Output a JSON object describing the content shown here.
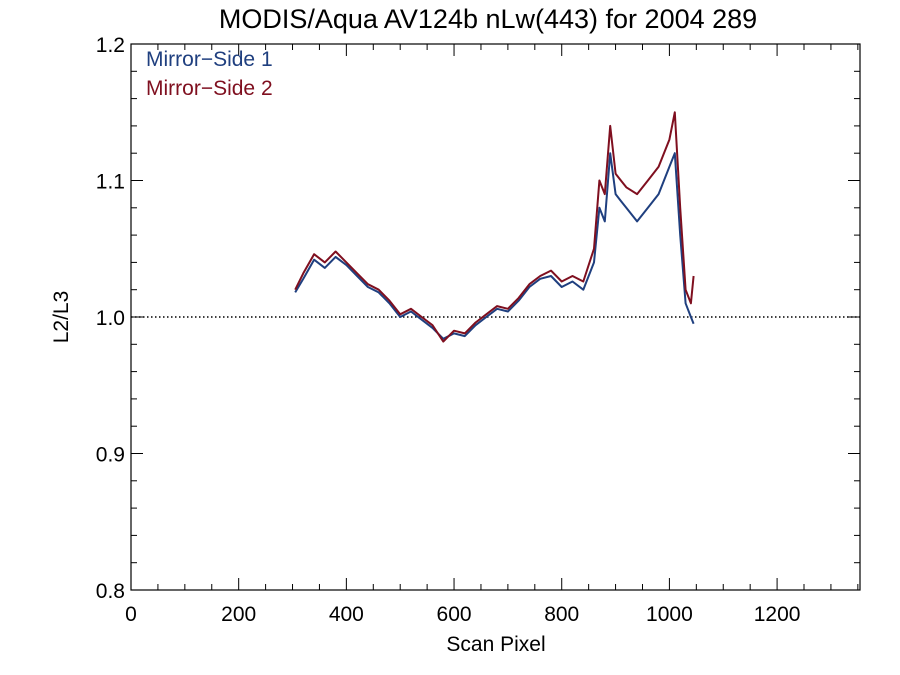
{
  "chart_data": {
    "type": "line",
    "title": "MODIS/Aqua AV124b nLw(443) for 2004 289",
    "xlabel": "Scan Pixel",
    "ylabel": "L2/L3",
    "xlim": [
      0,
      1354
    ],
    "ylim": [
      0.8,
      1.2
    ],
    "xticks": [
      0,
      200,
      400,
      600,
      800,
      1000,
      1200
    ],
    "xtick_labels": [
      "0",
      "200",
      "400",
      "600",
      "800",
      "1000",
      "1200"
    ],
    "yticks": [
      0.8,
      0.9,
      1.0,
      1.1,
      1.2
    ],
    "ytick_labels": [
      "0.8",
      "0.9",
      "1.0",
      "1.1",
      "1.2"
    ],
    "reference_line": {
      "y": 1.0,
      "style": "dotted"
    },
    "legend": {
      "position": "top-left",
      "entries": [
        "Mirror−Side 1",
        "Mirror−Side 2"
      ]
    },
    "grid": false,
    "x": [
      305,
      320,
      340,
      360,
      380,
      400,
      420,
      440,
      460,
      480,
      500,
      520,
      540,
      560,
      580,
      600,
      620,
      640,
      660,
      680,
      700,
      720,
      740,
      760,
      780,
      800,
      820,
      840,
      860,
      870,
      880,
      890,
      900,
      910,
      920,
      940,
      960,
      980,
      1000,
      1010,
      1020,
      1030,
      1040,
      1045
    ],
    "series": [
      {
        "name": "Mirror−Side 1",
        "color": "#1f3f7f",
        "values": [
          1.018,
          1.028,
          1.042,
          1.036,
          1.044,
          1.038,
          1.03,
          1.022,
          1.018,
          1.01,
          1.0,
          1.004,
          0.998,
          0.992,
          0.984,
          0.988,
          0.986,
          0.994,
          1.0,
          1.006,
          1.004,
          1.012,
          1.022,
          1.028,
          1.03,
          1.022,
          1.026,
          1.02,
          1.04,
          1.08,
          1.07,
          1.12,
          1.09,
          1.085,
          1.08,
          1.07,
          1.08,
          1.09,
          1.11,
          1.12,
          1.06,
          1.01,
          1.0,
          0.995
        ]
      },
      {
        "name": "Mirror−Side 2",
        "color": "#7f0f1f",
        "values": [
          1.02,
          1.032,
          1.046,
          1.04,
          1.048,
          1.04,
          1.032,
          1.024,
          1.02,
          1.012,
          1.002,
          1.006,
          1.0,
          0.994,
          0.982,
          0.99,
          0.988,
          0.996,
          1.002,
          1.008,
          1.006,
          1.014,
          1.024,
          1.03,
          1.034,
          1.026,
          1.03,
          1.026,
          1.05,
          1.1,
          1.09,
          1.14,
          1.105,
          1.1,
          1.095,
          1.09,
          1.1,
          1.11,
          1.13,
          1.15,
          1.08,
          1.02,
          1.01,
          1.03
        ]
      }
    ]
  }
}
